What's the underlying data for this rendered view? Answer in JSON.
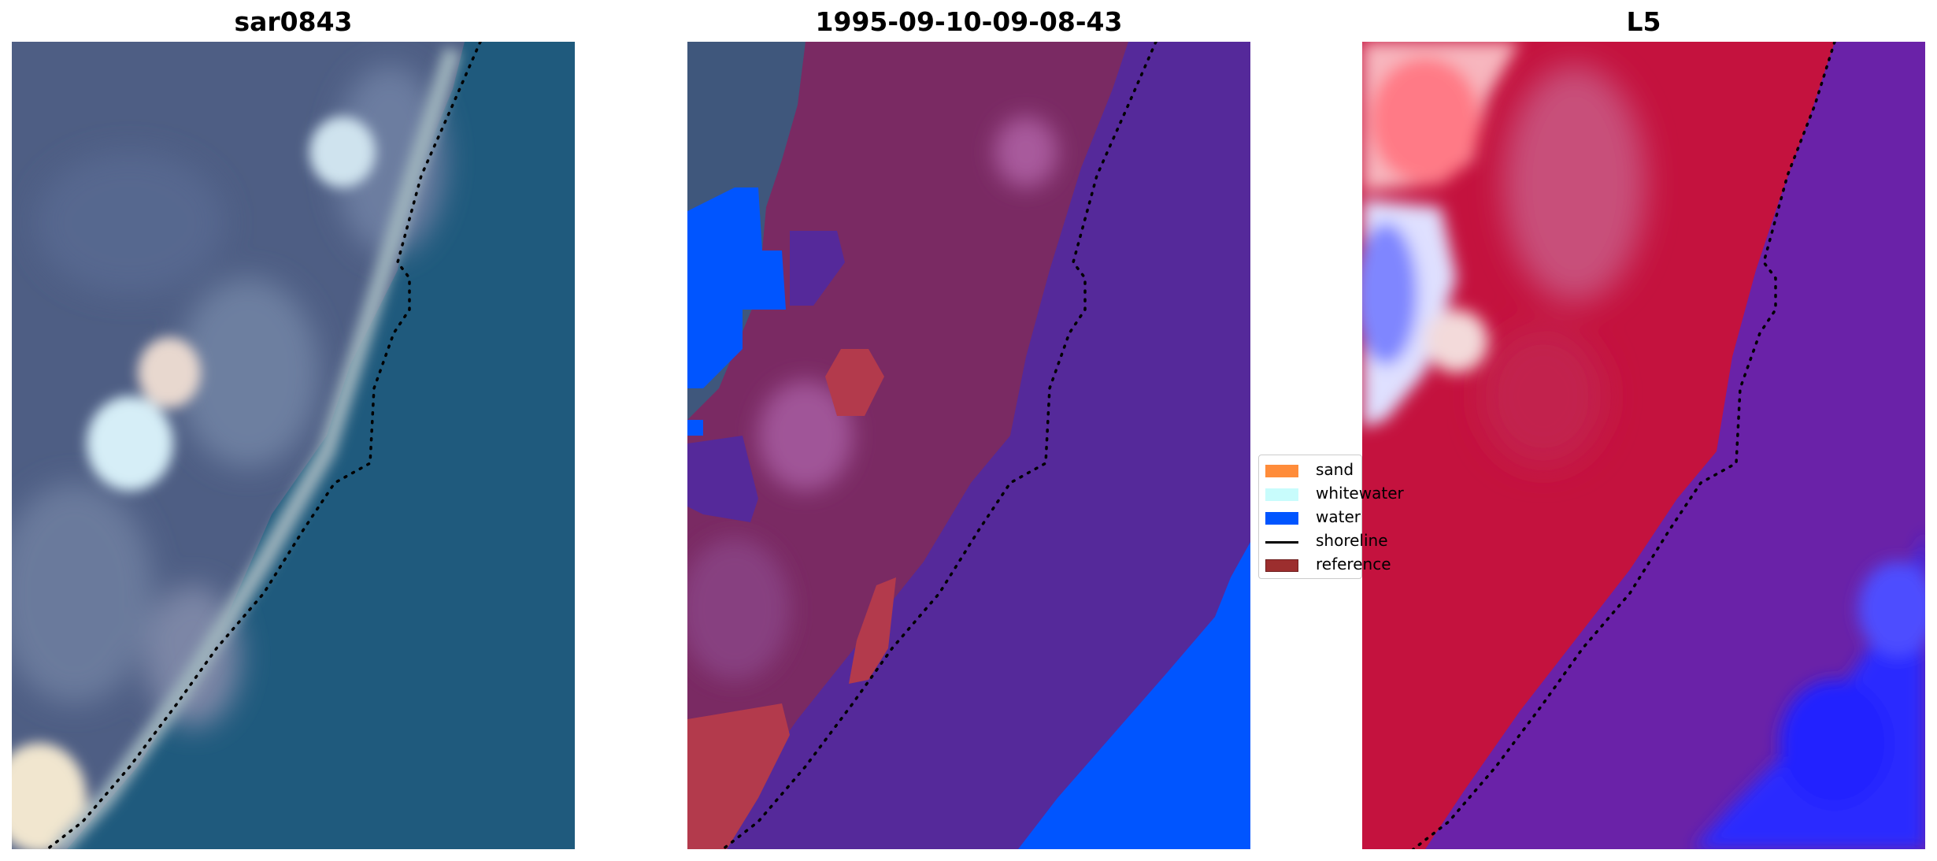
{
  "panels": [
    {
      "id": "rgb",
      "title": "sar0843"
    },
    {
      "id": "classification",
      "title": "1995-09-10-09-08-43"
    },
    {
      "id": "index",
      "title": "L5"
    }
  ],
  "legend": {
    "items": [
      {
        "label": "sand",
        "color": "#ff8c3a",
        "kind": "patch"
      },
      {
        "label": "whitewater",
        "color": "#c8fcfc",
        "kind": "patch"
      },
      {
        "label": "water",
        "color": "#0055ff",
        "kind": "patch"
      },
      {
        "label": "shoreline",
        "color": "#000000",
        "kind": "line"
      },
      {
        "label": "reference",
        "color": "#9c2e2e",
        "kind": "patch"
      }
    ]
  },
  "colors": {
    "rgb_land": "#4e5e84",
    "rgb_sea": "#1f5a7d",
    "class_land": "#7a2a63",
    "class_sea": "#55299a",
    "class_water": "#0055ff",
    "class_reference": "#b33a4c",
    "index_land": "#c4123e",
    "index_sea": "#6a22a8",
    "index_water": "#2a2aff"
  }
}
